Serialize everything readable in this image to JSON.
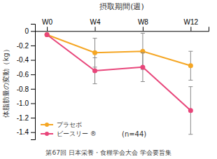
{
  "chart_data": {
    "type": "line",
    "title": "摂取期間(週)",
    "y_label": "体脂肪量の変動（kg）",
    "x": [
      0,
      4,
      8,
      12
    ],
    "xlim": [
      -1.0,
      13.5
    ],
    "xticks": [
      {
        "value": 0,
        "label": "W0"
      },
      {
        "value": 4,
        "label": "W4"
      },
      {
        "value": 8,
        "label": "W8"
      },
      {
        "value": 12,
        "label": "W12"
      }
    ],
    "ylim": [
      -1.5,
      0.1
    ],
    "yticks": [
      0,
      -0.2,
      -0.4,
      -0.6,
      -0.8,
      {
        "value": -1.0,
        "label": "-1.0"
      },
      -1.2,
      -1.4
    ],
    "series": [
      {
        "name": "プラセボ",
        "color": "#F5A623",
        "marker": "circle",
        "values": [
          -0.05,
          -0.3,
          -0.28,
          -0.48
        ],
        "errors": [
          0.0,
          0.2,
          0.25,
          0.2
        ]
      },
      {
        "name": "ビースリー ®",
        "color": "#E8457A",
        "marker": "circle",
        "values": [
          -0.05,
          -0.55,
          -0.5,
          -1.1
        ],
        "errors": [
          0.0,
          0.18,
          0.2,
          0.33
        ]
      }
    ],
    "annotations": [
      "(n=44)",
      "第67回 日本栄養・食糧学会大会 学会要旨集"
    ],
    "legend": "lower left",
    "grid": false
  }
}
